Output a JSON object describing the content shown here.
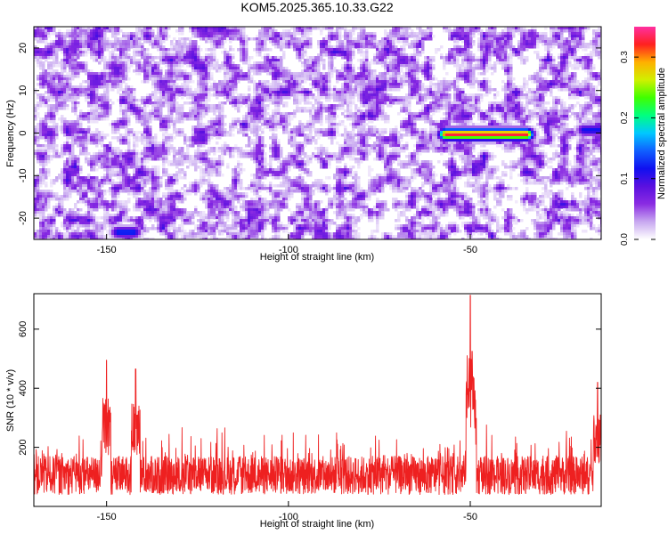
{
  "figure": {
    "title": "KOM5.2025.365.10.33.G22"
  },
  "chart_data": [
    {
      "type": "heatmap",
      "title": "KOM5.2025.365.10.33.G22",
      "xlabel": "Height of straight line (km)",
      "ylabel": "Frequency (Hz)",
      "xlim": [
        -170,
        -14
      ],
      "ylim": [
        -25,
        25
      ],
      "x_ticks": [
        -150,
        -100,
        -50
      ],
      "y_ticks": [
        -20,
        -10,
        0,
        10,
        20
      ],
      "colorbar": {
        "label": "Normalized spectral amplitude",
        "range": [
          0.0,
          0.35
        ],
        "ticks": [
          0.0,
          0.1,
          0.2,
          0.3
        ],
        "colors": [
          "#ffffff",
          "#c8a8f0",
          "#8a2be2",
          "#5a10e0",
          "#1010f0",
          "#1060ff",
          "#00c8ff",
          "#00ff80",
          "#40ff00",
          "#d0f000",
          "#ffb000",
          "#ff2020",
          "#ff30a0"
        ]
      },
      "features": [
        {
          "name": "hot spot",
          "x_range": [
            -57,
            -35
          ],
          "freq": 0,
          "value": 0.33
        },
        {
          "name": "weak",
          "x": -145,
          "freq": -23,
          "value": 0.13
        },
        {
          "name": "weak",
          "x": -17,
          "freq": 1,
          "value": 0.12
        }
      ]
    },
    {
      "type": "line",
      "xlabel": "Height of straight line (km)",
      "ylabel": "SNR (10 * v/v)",
      "xlim": [
        -170,
        -14
      ],
      "ylim": [
        0,
        720
      ],
      "x_ticks": [
        -150,
        -100,
        -50
      ],
      "y_ticks": [
        200,
        400,
        600
      ],
      "series": [
        {
          "color": "#ee2020",
          "peaks": [
            {
              "x": -150,
              "y": 495
            },
            {
              "x": -142,
              "y": 465
            },
            {
              "x": -50,
              "y": 715
            },
            {
              "x": -49.5,
              "y": 525
            },
            {
              "x": -15,
              "y": 420
            }
          ]
        }
      ]
    }
  ]
}
